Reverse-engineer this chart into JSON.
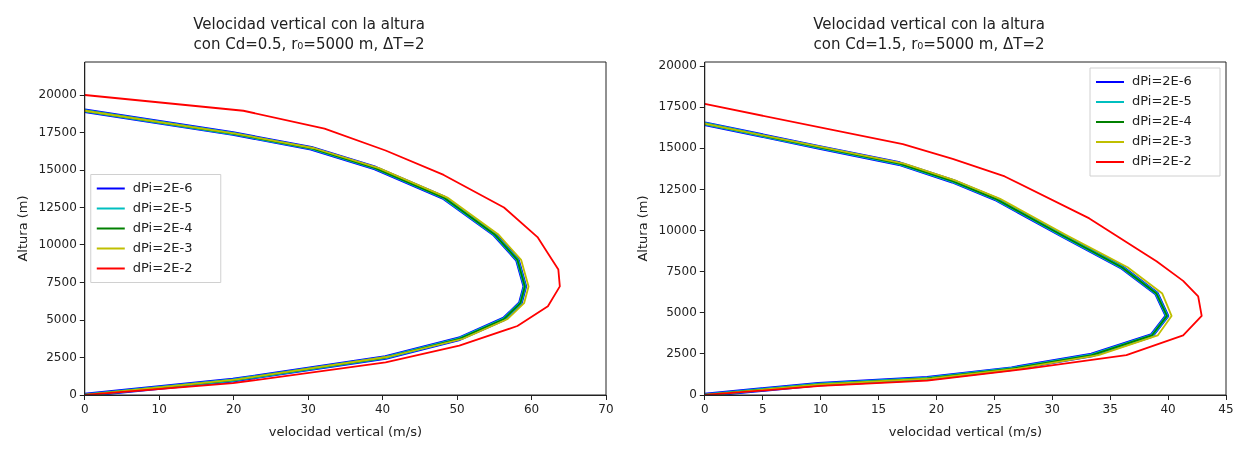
{
  "chart_data": [
    {
      "type": "line",
      "title": "Velocidad vertical con la altura",
      "subtitle": "con Cd=0.5, r₀=5000 m, ΔT=2",
      "xlabel": "velocidad vertical (m/s)",
      "ylabel": "Altura (m)",
      "xlim": [
        0,
        70
      ],
      "xticks": [
        0,
        10,
        20,
        30,
        40,
        50,
        60,
        70
      ],
      "ylim": [
        0,
        22200
      ],
      "yticks": [
        0,
        2500,
        5000,
        7500,
        10000,
        12500,
        15000,
        17500,
        20000
      ],
      "grid": false,
      "legend": "center left",
      "line_style": "solid",
      "marker": "none",
      "series": [
        {
          "name": "dPi=2E-6",
          "color": "#0000ff",
          "x": [
            0,
            19.9,
            40.4,
            50.3,
            56.3,
            58.5,
            59.1,
            58.1,
            55.0,
            48.2,
            39.0,
            30.4,
            19.9,
            0
          ],
          "values": [
            0,
            990,
            2500,
            3750,
            5070,
            6120,
            7240,
            9010,
            10720,
            13160,
            15130,
            16450,
            17430,
            18950
          ]
        },
        {
          "name": "dPi=2E-5",
          "color": "#00bfbf",
          "x": [
            0,
            19.9,
            40.4,
            50.3,
            56.3,
            58.5,
            59.1,
            58.1,
            55.0,
            48.2,
            39.0,
            30.4,
            19.9,
            0
          ],
          "values": [
            0,
            990,
            2500,
            3750,
            5070,
            6120,
            7240,
            9010,
            10720,
            13160,
            15130,
            16450,
            17430,
            18950
          ]
        },
        {
          "name": "dPi=2E-4",
          "color": "#008000",
          "x": [
            0,
            19.9,
            40.4,
            50.3,
            56.3,
            58.5,
            59.1,
            58.1,
            55.0,
            48.2,
            39.0,
            30.4,
            19.9,
            0
          ],
          "values": [
            0,
            990,
            2500,
            3750,
            5070,
            6120,
            7240,
            9010,
            10720,
            13160,
            15130,
            16450,
            17430,
            18950
          ]
        },
        {
          "name": "dPi=2E-3",
          "color": "#bfbf00",
          "x": [
            0,
            20.2,
            40.8,
            50.8,
            56.8,
            59.0,
            59.6,
            58.6,
            55.5,
            48.7,
            39.5,
            30.8,
            20.2,
            0
          ],
          "values": [
            0,
            1020,
            2550,
            3750,
            5070,
            6120,
            7240,
            9010,
            10720,
            13160,
            15130,
            16450,
            17430,
            18950
          ]
        },
        {
          "name": "dPi=2E-2",
          "color": "#ff0000",
          "x": [
            0,
            19.9,
            40.4,
            50.3,
            58.1,
            62.2,
            63.8,
            63.6,
            60.8,
            56.3,
            48.2,
            40.4,
            32.2,
            21.3,
            0
          ],
          "values": [
            0,
            790,
            2170,
            3290,
            4600,
            5920,
            7240,
            8360,
            10530,
            12500,
            14670,
            16300,
            17760,
            18950,
            20000
          ]
        }
      ]
    },
    {
      "type": "line",
      "title": "Velocidad vertical con la altura",
      "subtitle": "con Cd=1.5, r₀=5000 m, ΔT=2",
      "xlabel": "velocidad vertical (m/s)",
      "ylabel": "Altura (m)",
      "xlim": [
        0,
        45
      ],
      "xticks": [
        0,
        5,
        10,
        15,
        20,
        25,
        30,
        35,
        40,
        45
      ],
      "ylim": [
        0,
        20250
      ],
      "yticks": [
        0,
        2500,
        5000,
        7500,
        10000,
        12500,
        15000,
        17500,
        20000
      ],
      "grid": false,
      "legend": "top right",
      "line_style": "solid",
      "marker": "none",
      "series": [
        {
          "name": "dPi=2E-6",
          "color": "#0000ff",
          "x": [
            0,
            9.8,
            19.2,
            26.5,
            33.4,
            38.6,
            39.9,
            39.0,
            36.0,
            30.8,
            25.1,
            21.4,
            16.8,
            9.8,
            0
          ],
          "values": [
            0,
            650,
            1010,
            1600,
            2430,
            3620,
            4810,
            6170,
            7770,
            9730,
            11930,
            13000,
            14070,
            15070,
            16500
          ]
        },
        {
          "name": "dPi=2E-5",
          "color": "#00bfbf",
          "x": [
            0,
            9.8,
            19.2,
            26.5,
            33.4,
            38.6,
            39.9,
            39.0,
            36.0,
            30.8,
            25.1,
            21.4,
            16.8,
            9.8,
            0
          ],
          "values": [
            0,
            650,
            1010,
            1600,
            2430,
            3620,
            4810,
            6170,
            7770,
            9730,
            11930,
            13000,
            14070,
            15070,
            16500
          ]
        },
        {
          "name": "dPi=2E-4",
          "color": "#008000",
          "x": [
            0,
            9.8,
            19.2,
            26.5,
            33.4,
            38.6,
            39.9,
            39.0,
            36.0,
            30.8,
            25.1,
            21.4,
            16.8,
            9.8,
            0
          ],
          "values": [
            0,
            650,
            1010,
            1600,
            2430,
            3620,
            4810,
            6170,
            7770,
            9730,
            11930,
            13000,
            14070,
            15070,
            16500
          ]
        },
        {
          "name": "dPi=2E-3",
          "color": "#bfbf00",
          "x": [
            0,
            10.0,
            19.6,
            27.0,
            34.0,
            39.1,
            40.3,
            39.5,
            36.5,
            31.2,
            25.5,
            21.8,
            17.2,
            10.1,
            0
          ],
          "values": [
            0,
            650,
            1010,
            1600,
            2430,
            3620,
            4810,
            6170,
            7770,
            9730,
            11930,
            13000,
            14070,
            15070,
            16500
          ]
        },
        {
          "name": "dPi=2E-2",
          "color": "#ff0000",
          "x": [
            0,
            10.0,
            19.2,
            27.9,
            36.4,
            41.3,
            42.9,
            42.6,
            41.3,
            39.0,
            33.2,
            25.9,
            21.4,
            17.1,
            0
          ],
          "values": [
            0,
            550,
            880,
            1600,
            2430,
            3620,
            4810,
            5990,
            6940,
            8130,
            10740,
            13290,
            14360,
            15250,
            17700
          ]
        }
      ]
    }
  ]
}
